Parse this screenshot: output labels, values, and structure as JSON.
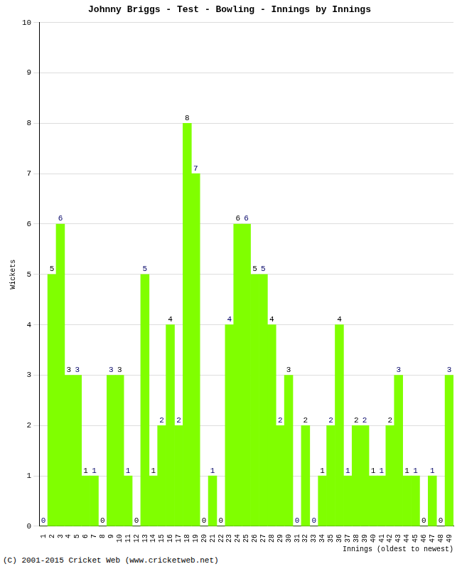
{
  "chart_data": {
    "type": "bar",
    "title": "Johnny Briggs - Test - Bowling - Innings by Innings",
    "x_label": "Innings (oldest to newest)",
    "y_label": "Wickets",
    "annotations": [
      "(C) 2001-2015 Cricket Web (www.cricketweb.net)"
    ],
    "categories": [
      "1",
      "2",
      "3",
      "4",
      "5",
      "6",
      "7",
      "8",
      "9",
      "10",
      "11",
      "12",
      "13",
      "14",
      "15",
      "16",
      "17",
      "18",
      "19",
      "20",
      "21",
      "22",
      "23",
      "24",
      "25",
      "26",
      "27",
      "28",
      "29",
      "30",
      "31",
      "32",
      "33",
      "34",
      "35",
      "36",
      "37",
      "38",
      "39",
      "40",
      "41",
      "42",
      "43",
      "44",
      "45",
      "46",
      "47",
      "48",
      "49"
    ],
    "values": [
      0,
      5,
      6,
      3,
      3,
      1,
      1,
      0,
      3,
      3,
      1,
      0,
      5,
      1,
      2,
      4,
      2,
      8,
      7,
      0,
      1,
      0,
      4,
      6,
      6,
      5,
      5,
      4,
      2,
      3,
      0,
      2,
      0,
      1,
      2,
      4,
      1,
      2,
      2,
      1,
      1,
      2,
      3,
      1,
      1,
      0,
      1,
      0,
      3
    ],
    "color": "#80ff00",
    "ylim": [
      0,
      10
    ],
    "yticks": [
      0,
      1,
      2,
      3,
      4,
      5,
      6,
      7,
      8,
      9,
      10
    ],
    "grid": true,
    "data_labels": true
  }
}
